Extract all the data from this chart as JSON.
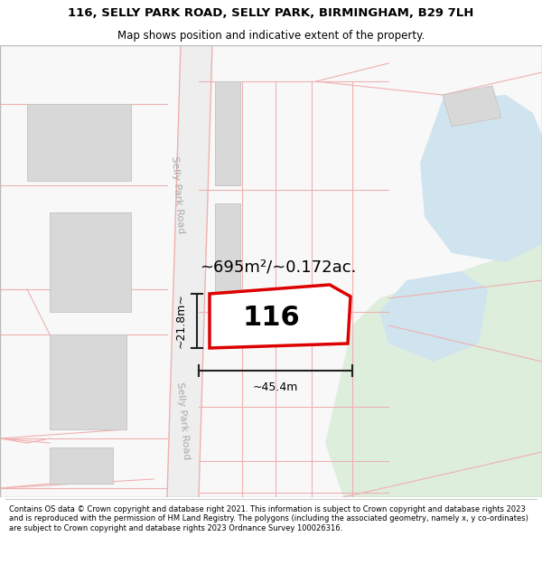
{
  "title_line1": "116, SELLY PARK ROAD, SELLY PARK, BIRMINGHAM, B29 7LH",
  "title_line2": "Map shows position and indicative extent of the property.",
  "footer_text": "Contains OS data © Crown copyright and database right 2021. This information is subject to Crown copyright and database rights 2023 and is reproduced with the permission of HM Land Registry. The polygons (including the associated geometry, namely x, y co-ordinates) are subject to Crown copyright and database rights 2023 Ordnance Survey 100026316.",
  "area_label": "~695m²/~0.172ac.",
  "number_label": "116",
  "width_label": "~45.4m",
  "height_label": "~21.8m~",
  "road_label_top": "Selly Park Road",
  "road_label_bottom": "Selly Park Road",
  "bg_color": "#ffffff",
  "map_bg": "#f7f7f7",
  "road_fill": "#eeeeee",
  "plot_line_color": "#f0b0b0",
  "property_fill": "#ffffff",
  "property_edge": "#dd0000",
  "green_area_color": "#ddeedd",
  "blue_area_color": "#d0e4f0",
  "building_fill": "#d8d8d8",
  "building_edge": "#c8c8c8",
  "dim_line_color": "#222222",
  "road_label_color": "#aaaaaa",
  "title_fontsize": 9.5,
  "subtitle_fontsize": 8.5,
  "area_fontsize": 13,
  "number_fontsize": 22,
  "dim_label_fontsize": 9,
  "road_label_fontsize": 8
}
